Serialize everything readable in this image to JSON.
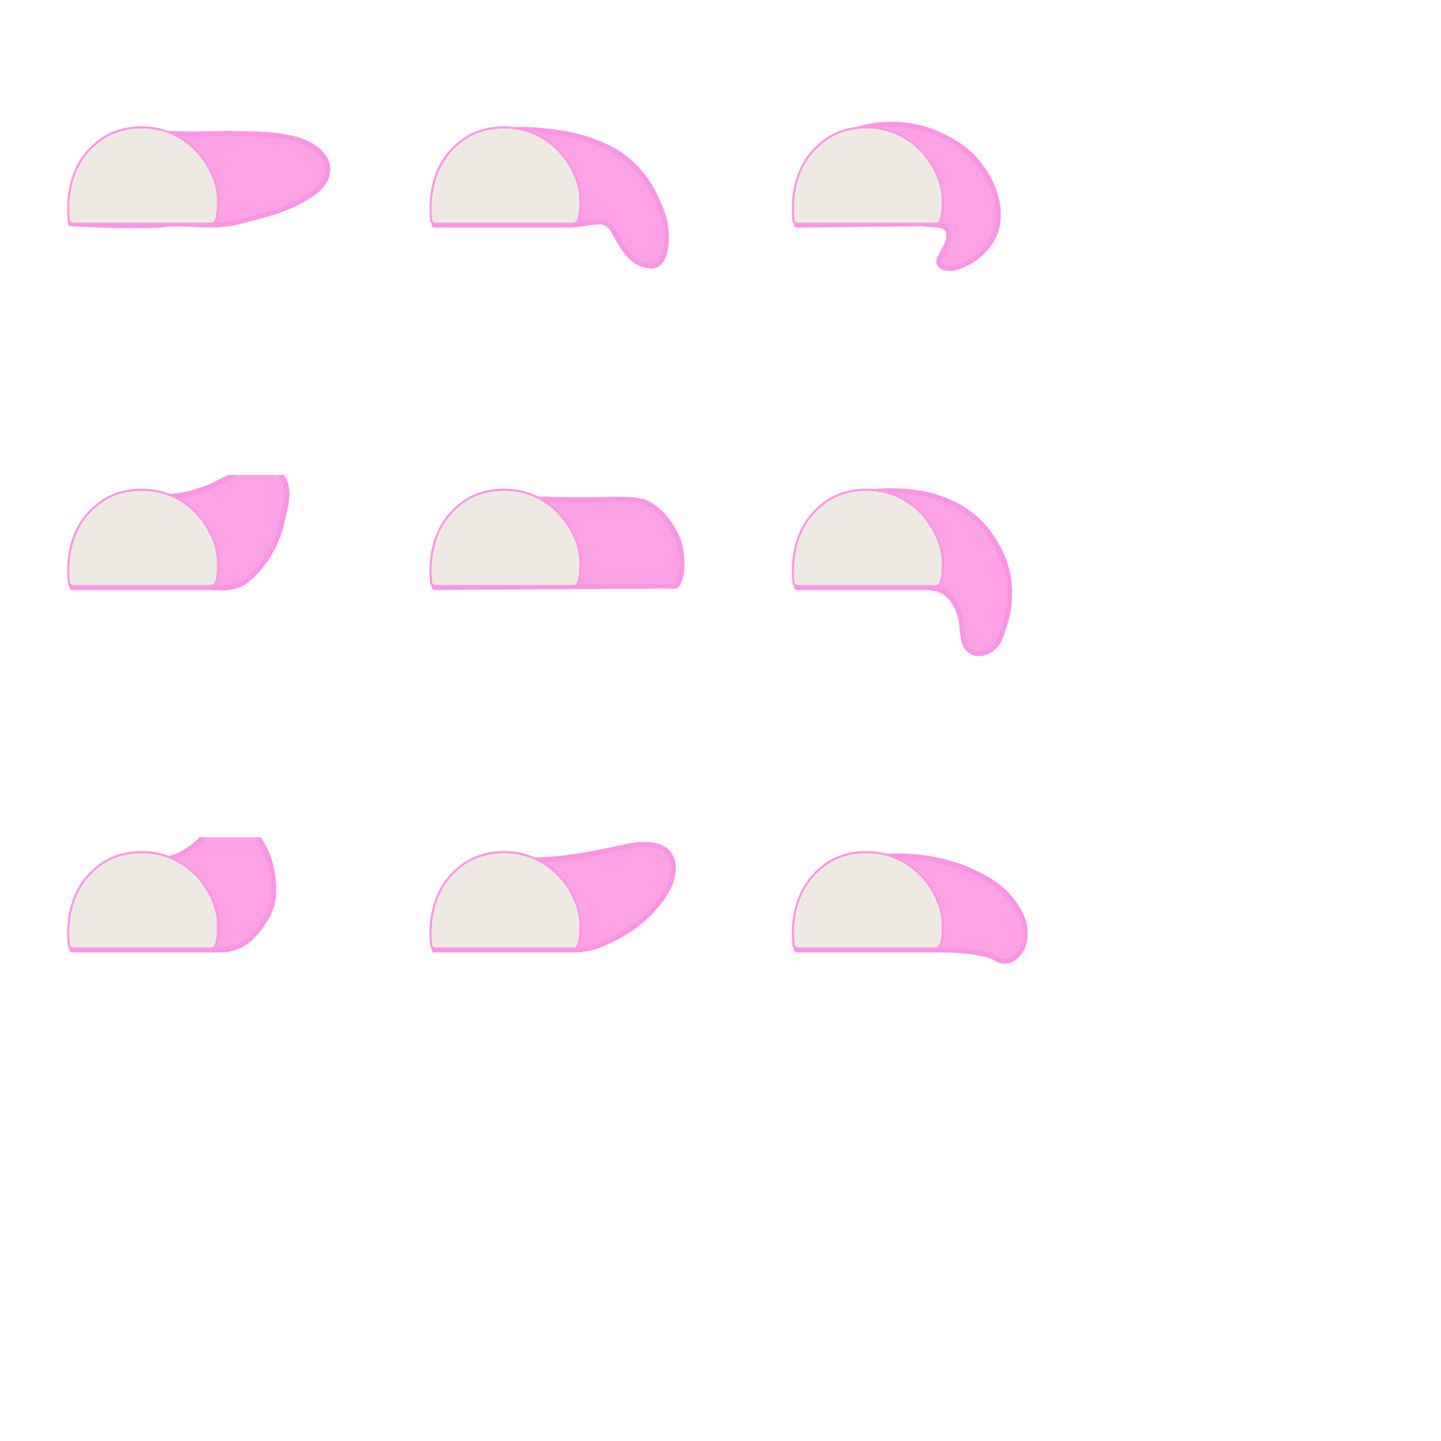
{
  "colors": {
    "background": "#ffffff",
    "pink_fill": "#ffa1e6",
    "pink_outline": "#fa95e6",
    "cream_fill": "#eeeae3",
    "cream_outline": "#fa95e6"
  },
  "sprites": [
    {
      "name": "sprite-1",
      "variant": "flat-wave"
    },
    {
      "name": "sprite-2",
      "variant": "curl-down-left"
    },
    {
      "name": "sprite-3",
      "variant": "hook-under"
    },
    {
      "name": "sprite-4",
      "variant": "rise-up-right"
    },
    {
      "name": "sprite-5",
      "variant": "box-tail"
    },
    {
      "name": "sprite-6",
      "variant": "drip-down"
    },
    {
      "name": "sprite-7",
      "variant": "peak-up"
    },
    {
      "name": "sprite-8",
      "variant": "long-flat"
    },
    {
      "name": "sprite-9",
      "variant": "drape-down-right"
    }
  ]
}
